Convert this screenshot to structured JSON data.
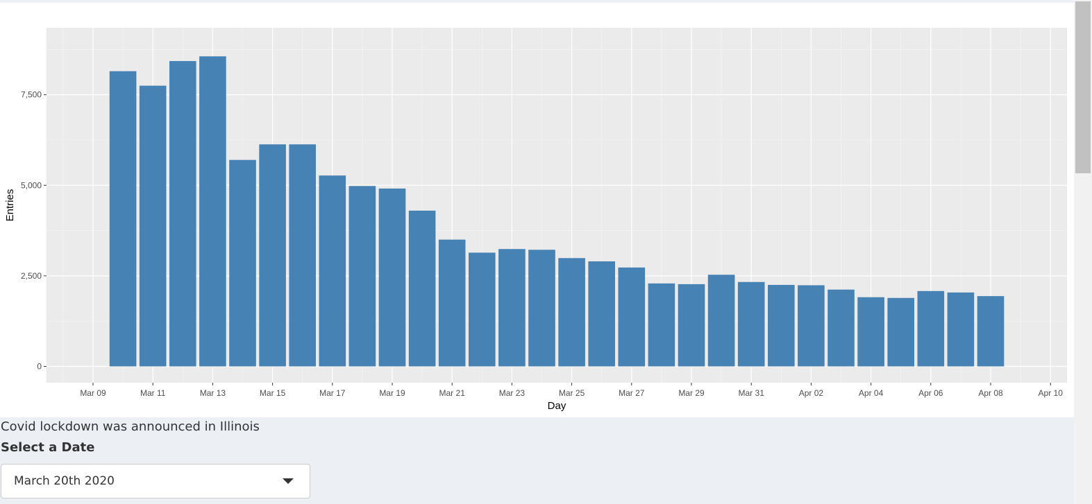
{
  "chart_data": {
    "type": "bar",
    "xlabel": "Day",
    "ylabel": "Entries",
    "x_ticks": [
      "Mar 09",
      "Mar 11",
      "Mar 13",
      "Mar 15",
      "Mar 17",
      "Mar 19",
      "Mar 21",
      "Mar 23",
      "Mar 25",
      "Mar 27",
      "Mar 29",
      "Mar 31",
      "Apr 02",
      "Apr 04",
      "Apr 06",
      "Apr 08",
      "Apr 10"
    ],
    "y_ticks": [
      "0",
      "2,500",
      "5,000",
      "7,500"
    ],
    "y_tick_values": [
      0,
      2500,
      5000,
      7500
    ],
    "ylim": [
      -450,
      9350
    ],
    "bar_color": "#4682b4",
    "panel_background": "#ebebeb",
    "grid": true,
    "categories": [
      "Mar 10",
      "Mar 11",
      "Mar 12",
      "Mar 13",
      "Mar 14",
      "Mar 15",
      "Mar 16",
      "Mar 17",
      "Mar 18",
      "Mar 19",
      "Mar 20",
      "Mar 21",
      "Mar 22",
      "Mar 23",
      "Mar 24",
      "Mar 25",
      "Mar 26",
      "Mar 27",
      "Mar 28",
      "Mar 29",
      "Mar 30",
      "Mar 31",
      "Apr 01",
      "Apr 02",
      "Apr 03",
      "Apr 04",
      "Apr 05",
      "Apr 06",
      "Apr 07",
      "Apr 08"
    ],
    "values": [
      8150,
      7750,
      8430,
      8560,
      5700,
      6130,
      6130,
      5270,
      4980,
      4910,
      4300,
      3500,
      3140,
      3240,
      3220,
      2990,
      2900,
      2730,
      2290,
      2270,
      2530,
      2330,
      2250,
      2240,
      2120,
      1910,
      1890,
      2080,
      2040,
      1940
    ]
  },
  "caption": "Covid lockdown was announced in Illinois",
  "select": {
    "label": "Select a Date",
    "value": "March 20th 2020"
  }
}
